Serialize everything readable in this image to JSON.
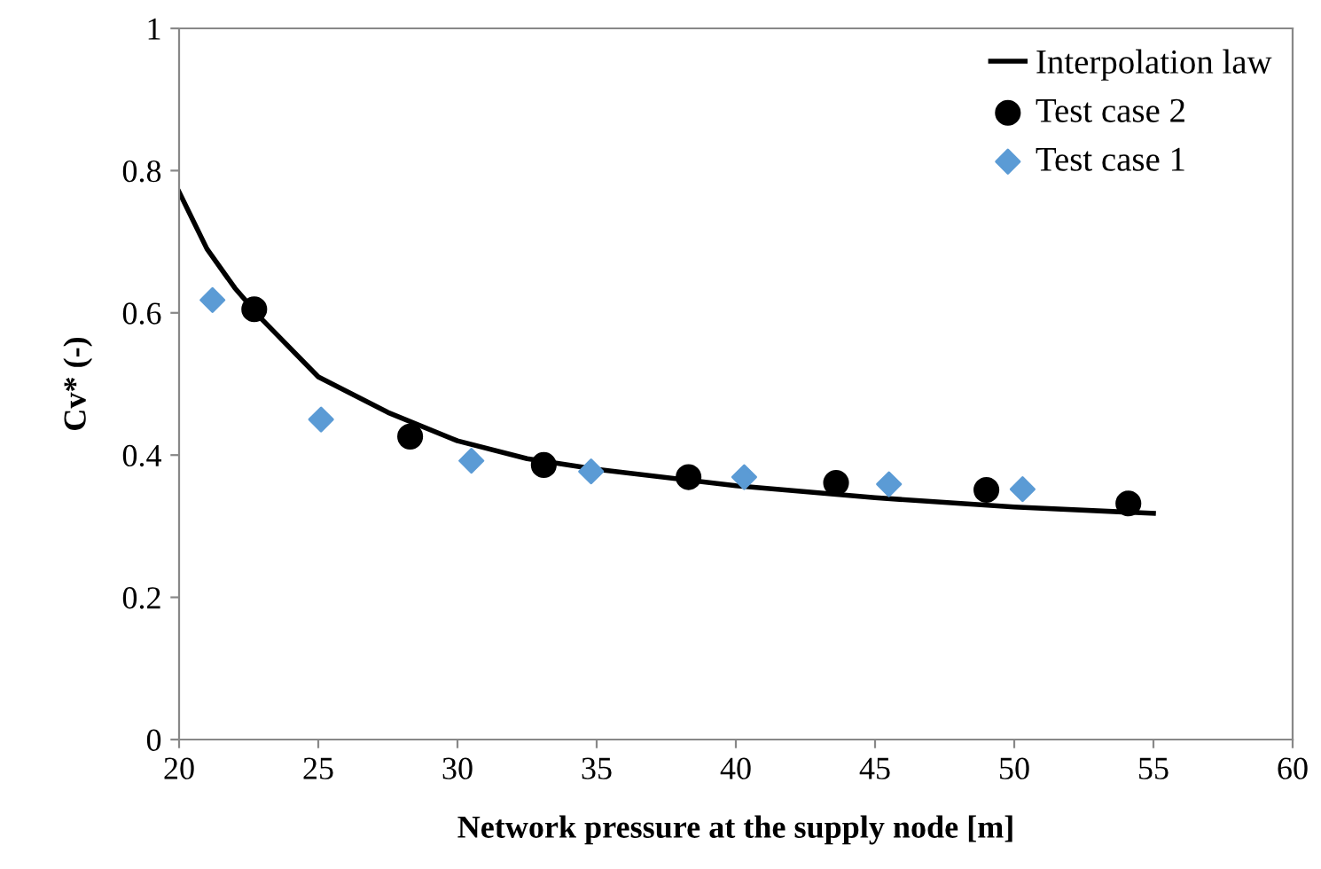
{
  "chart_data": {
    "type": "scatter",
    "xlabel": "Network pressure at the supply node [m]",
    "ylabel": "Cv* (-)",
    "xlim": [
      20,
      60
    ],
    "xticks": [
      20,
      25,
      30,
      35,
      40,
      45,
      50,
      55,
      60
    ],
    "ylim": [
      0,
      1
    ],
    "yticks": [
      0,
      0.2,
      0.4,
      0.6,
      0.8,
      1
    ],
    "grid": false,
    "legend": "top right",
    "series": [
      {
        "name": "Interpolation law",
        "type": "line",
        "color": "#000000",
        "marker": "none",
        "line_style": "solid",
        "x": [
          20,
          21,
          22,
          23,
          25,
          27.5,
          30,
          32.5,
          35,
          40,
          45,
          50,
          55
        ],
        "values": [
          0.77,
          0.69,
          0.635,
          0.59,
          0.51,
          0.46,
          0.42,
          0.395,
          0.38,
          0.357,
          0.34,
          0.327,
          0.318
        ]
      },
      {
        "name": "Test case 2",
        "color": "#000000",
        "marker": "circle",
        "x": [
          22.7,
          28.3,
          33.1,
          38.3,
          43.6,
          49.0,
          54.1
        ],
        "values": [
          0.605,
          0.426,
          0.386,
          0.369,
          0.361,
          0.351,
          0.332
        ]
      },
      {
        "name": "Test case 1",
        "color": "#5b9bd5",
        "marker": "diamond",
        "x": [
          21.2,
          25.1,
          30.5,
          34.8,
          40.3,
          45.5,
          50.3
        ],
        "values": [
          0.618,
          0.45,
          0.392,
          0.377,
          0.369,
          0.359,
          0.352
        ]
      }
    ]
  }
}
